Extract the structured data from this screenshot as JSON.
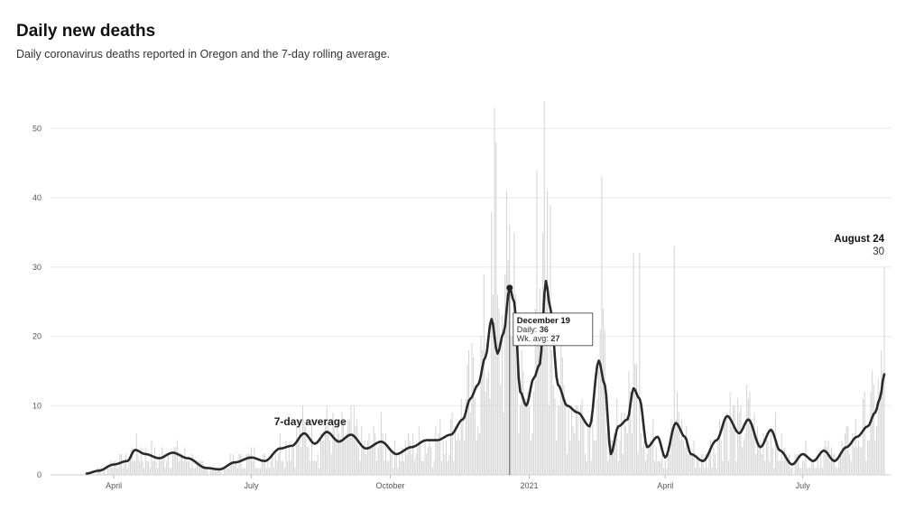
{
  "header": {
    "title": "Daily new deaths",
    "subtitle": "Daily coronavirus deaths reported in Oregon and the 7-day rolling average."
  },
  "colors": {
    "bar": "#d4d4d4",
    "line": "#2a2a2a",
    "grid": "#e8e8e8",
    "text": "#111111"
  },
  "chart_data": {
    "type": "bar",
    "title": "Daily new deaths",
    "subtitle": "Daily coronavirus deaths reported in Oregon and the 7-day rolling average.",
    "x_start": "2020-03-14",
    "x_end": "2021-08-24",
    "ylim": [
      0,
      55
    ],
    "yticks": [
      0,
      10,
      20,
      30,
      40,
      50
    ],
    "grid": true,
    "xticks": [
      {
        "date": "2020-04-01",
        "label": "April"
      },
      {
        "date": "2020-07-01",
        "label": "July"
      },
      {
        "date": "2020-10-01",
        "label": "October"
      },
      {
        "date": "2021-01-01",
        "label": "2021"
      },
      {
        "date": "2021-04-01",
        "label": "April"
      },
      {
        "date": "2021-07-01",
        "label": "July"
      }
    ],
    "series": [
      {
        "name": "Daily",
        "kind": "bar",
        "note": "values estimated from pixel heights of daily bars",
        "key_points": [
          {
            "date": "2020-12-09",
            "value": 53
          },
          {
            "date": "2020-12-10",
            "value": 48
          },
          {
            "date": "2020-12-19",
            "value": 36
          },
          {
            "date": "2020-12-22",
            "value": 35
          },
          {
            "date": "2021-01-06",
            "value": 44
          },
          {
            "date": "2021-01-11",
            "value": 54
          },
          {
            "date": "2021-01-13",
            "value": 41
          },
          {
            "date": "2021-02-18",
            "value": 43
          },
          {
            "date": "2021-03-11",
            "value": 32
          },
          {
            "date": "2021-03-15",
            "value": 32
          },
          {
            "date": "2021-04-07",
            "value": 33
          },
          {
            "date": "2021-08-24",
            "value": 30
          }
        ]
      },
      {
        "name": "7-day average",
        "kind": "line",
        "points": [
          {
            "date": "2020-03-14",
            "value": 0.2
          },
          {
            "date": "2020-03-22",
            "value": 0.6
          },
          {
            "date": "2020-04-01",
            "value": 1.5
          },
          {
            "date": "2020-04-10",
            "value": 2.0
          },
          {
            "date": "2020-04-15",
            "value": 3.6
          },
          {
            "date": "2020-04-22",
            "value": 3.0
          },
          {
            "date": "2020-05-01",
            "value": 2.4
          },
          {
            "date": "2020-05-10",
            "value": 3.2
          },
          {
            "date": "2020-05-20",
            "value": 2.4
          },
          {
            "date": "2020-06-01",
            "value": 1.0
          },
          {
            "date": "2020-06-10",
            "value": 0.8
          },
          {
            "date": "2020-06-20",
            "value": 1.8
          },
          {
            "date": "2020-07-01",
            "value": 2.5
          },
          {
            "date": "2020-07-10",
            "value": 2.0
          },
          {
            "date": "2020-07-20",
            "value": 3.8
          },
          {
            "date": "2020-07-28",
            "value": 4.2
          },
          {
            "date": "2020-08-05",
            "value": 6.0
          },
          {
            "date": "2020-08-12",
            "value": 4.5
          },
          {
            "date": "2020-08-20",
            "value": 6.2
          },
          {
            "date": "2020-08-28",
            "value": 4.8
          },
          {
            "date": "2020-09-05",
            "value": 5.8
          },
          {
            "date": "2020-09-15",
            "value": 3.8
          },
          {
            "date": "2020-09-25",
            "value": 4.8
          },
          {
            "date": "2020-10-05",
            "value": 3.0
          },
          {
            "date": "2020-10-15",
            "value": 4.0
          },
          {
            "date": "2020-10-25",
            "value": 5.0
          },
          {
            "date": "2020-11-01",
            "value": 5.0
          },
          {
            "date": "2020-11-10",
            "value": 5.8
          },
          {
            "date": "2020-11-18",
            "value": 8.0
          },
          {
            "date": "2020-11-23",
            "value": 11.0
          },
          {
            "date": "2020-11-28",
            "value": 13.0
          },
          {
            "date": "2020-12-03",
            "value": 17.0
          },
          {
            "date": "2020-12-07",
            "value": 22.5
          },
          {
            "date": "2020-12-11",
            "value": 17.5
          },
          {
            "date": "2020-12-15",
            "value": 20.5
          },
          {
            "date": "2020-12-19",
            "value": 27.0
          },
          {
            "date": "2020-12-22",
            "value": 25.0
          },
          {
            "date": "2020-12-26",
            "value": 12.0
          },
          {
            "date": "2020-12-30",
            "value": 10.0
          },
          {
            "date": "2021-01-04",
            "value": 14.0
          },
          {
            "date": "2021-01-08",
            "value": 16.0
          },
          {
            "date": "2021-01-12",
            "value": 28.0
          },
          {
            "date": "2021-01-15",
            "value": 24.0
          },
          {
            "date": "2021-01-20",
            "value": 13.0
          },
          {
            "date": "2021-01-26",
            "value": 10.0
          },
          {
            "date": "2021-02-02",
            "value": 9.0
          },
          {
            "date": "2021-02-10",
            "value": 7.0
          },
          {
            "date": "2021-02-16",
            "value": 16.5
          },
          {
            "date": "2021-02-20",
            "value": 13.0
          },
          {
            "date": "2021-02-24",
            "value": 3.0
          },
          {
            "date": "2021-03-01",
            "value": 7.0
          },
          {
            "date": "2021-03-07",
            "value": 8.0
          },
          {
            "date": "2021-03-11",
            "value": 12.5
          },
          {
            "date": "2021-03-15",
            "value": 11.0
          },
          {
            "date": "2021-03-20",
            "value": 4.0
          },
          {
            "date": "2021-03-27",
            "value": 5.5
          },
          {
            "date": "2021-04-01",
            "value": 2.5
          },
          {
            "date": "2021-04-08",
            "value": 7.5
          },
          {
            "date": "2021-04-14",
            "value": 5.5
          },
          {
            "date": "2021-04-18",
            "value": 3.0
          },
          {
            "date": "2021-04-26",
            "value": 2.0
          },
          {
            "date": "2021-05-05",
            "value": 5.0
          },
          {
            "date": "2021-05-12",
            "value": 8.5
          },
          {
            "date": "2021-05-20",
            "value": 6.0
          },
          {
            "date": "2021-05-26",
            "value": 8.0
          },
          {
            "date": "2021-06-03",
            "value": 4.0
          },
          {
            "date": "2021-06-10",
            "value": 6.5
          },
          {
            "date": "2021-06-16",
            "value": 3.5
          },
          {
            "date": "2021-06-24",
            "value": 1.5
          },
          {
            "date": "2021-07-01",
            "value": 3.0
          },
          {
            "date": "2021-07-08",
            "value": 2.0
          },
          {
            "date": "2021-07-15",
            "value": 3.5
          },
          {
            "date": "2021-07-22",
            "value": 2.0
          },
          {
            "date": "2021-07-30",
            "value": 4.0
          },
          {
            "date": "2021-08-06",
            "value": 5.5
          },
          {
            "date": "2021-08-13",
            "value": 7.0
          },
          {
            "date": "2021-08-18",
            "value": 9.0
          },
          {
            "date": "2021-08-21",
            "value": 11.0
          },
          {
            "date": "2021-08-24",
            "value": 14.5
          }
        ]
      }
    ],
    "annotations": {
      "line_label": {
        "text": "7-day average",
        "date": "2020-08-09",
        "value": 7.2
      },
      "tooltip": {
        "date_label": "December 19",
        "daily_label": "Daily:",
        "daily_value": "36",
        "avg_label": "Wk. avg:",
        "avg_value": "27",
        "date": "2020-12-19"
      },
      "last": {
        "date_label": "August 24",
        "value_label": "30"
      }
    }
  }
}
